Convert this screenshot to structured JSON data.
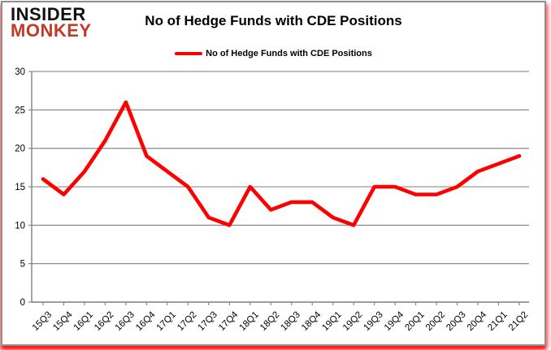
{
  "header": {
    "logo": {
      "line1": "INSIDER",
      "line2": "MONKEY"
    },
    "title": "No of Hedge Funds with CDE Positions"
  },
  "legend": {
    "label": "No of Hedge Funds with CDE Positions"
  },
  "chart_data": {
    "type": "line",
    "title": "No of Hedge Funds with CDE Positions",
    "categories": [
      "15Q3",
      "15Q4",
      "16Q1",
      "16Q2",
      "16Q3",
      "16Q4",
      "17Q1",
      "17Q2",
      "17Q3",
      "17Q4",
      "18Q1",
      "18Q2",
      "18Q3",
      "18Q4",
      "19Q1",
      "19Q2",
      "19Q3",
      "19Q4",
      "20Q1",
      "20Q2",
      "20Q3",
      "20Q4",
      "21Q1",
      "21Q2"
    ],
    "series": [
      {
        "name": "No of Hedge Funds with CDE Positions",
        "color": "#FF0000",
        "values": [
          16,
          14,
          17,
          21,
          26,
          19,
          17,
          15,
          11,
          10,
          15,
          12,
          13,
          13,
          11,
          10,
          15,
          15,
          14,
          14,
          15,
          17,
          18,
          19
        ]
      }
    ],
    "xlabel": "",
    "ylabel": "",
    "ylim": [
      0,
      30
    ],
    "yticks": [
      0,
      5,
      10,
      15,
      20,
      25,
      30
    ],
    "grid": true,
    "legend_position": "top"
  },
  "colors": {
    "line": "#FF0000",
    "grid": "#7f7f7f",
    "axis": "#7f7f7f",
    "text": "#000000",
    "logo_primary": "#111111",
    "logo_accent": "#C23A27",
    "background": "#FFFFFF"
  }
}
